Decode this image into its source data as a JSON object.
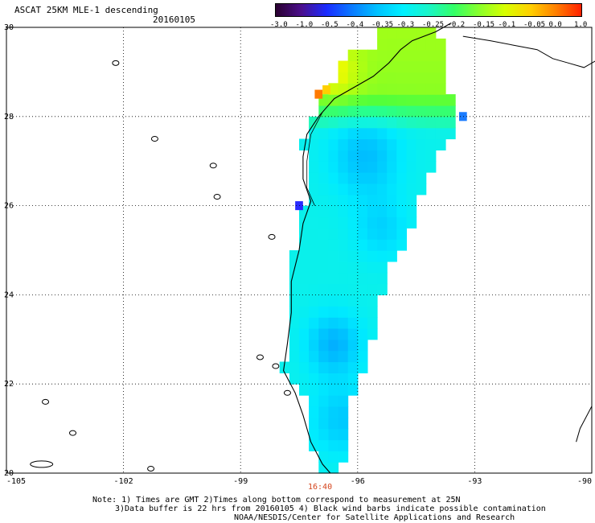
{
  "title": "ASCAT 25KM MLE-1 descending",
  "date": "20160105",
  "colorbar": {
    "labels": [
      "-3.0",
      "-1.0",
      "-0.5",
      "-0.4",
      "-0.35",
      "-0.3",
      "-0.25",
      "-0.2",
      "-0.15",
      "-0.1",
      "-0.05",
      "0.0",
      "1.0"
    ],
    "colors": [
      "#2a0030",
      "#4b0f8c",
      "#1a2cff",
      "#0a7bff",
      "#00c2ff",
      "#00f0ff",
      "#19f5c8",
      "#33ff66",
      "#8aff2a",
      "#d8ff00",
      "#ffd000",
      "#ff8000",
      "#ff2000"
    ]
  },
  "axes": {
    "lon_labels": [
      "-105",
      "-102",
      "-99",
      "-96",
      "-93",
      "-90"
    ],
    "lat_labels": [
      "30",
      "28",
      "26",
      "24",
      "22",
      "20"
    ]
  },
  "time_label": "16:40",
  "notes": [
    "Note: 1) Times are GMT 2)Times along bottom correspond to measurement at 25N",
    "3)Data buffer is 22 hrs from 20160105 4) Black wind barbs indicate possible contamination",
    "NOAA/NESDIS/Center for Satellite Applications and Research"
  ]
}
